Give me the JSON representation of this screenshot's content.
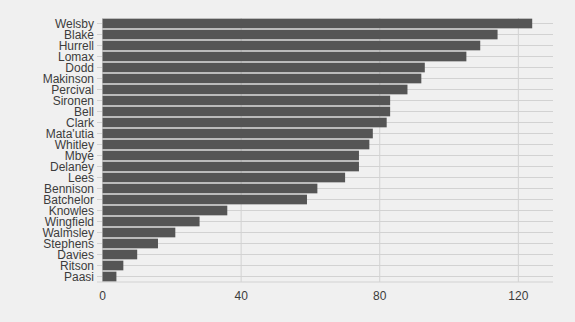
{
  "chart_data": {
    "type": "bar",
    "orientation": "horizontal",
    "categories": [
      "Welsby",
      "Blake",
      "Hurrell",
      "Lomax",
      "Dodd",
      "Makinson",
      "Percival",
      "Sironen",
      "Bell",
      "Clark",
      "Mata'utia",
      "Whitley",
      "Mbye",
      "Delaney",
      "Lees",
      "Bennison",
      "Batchelor",
      "Knowles",
      "Wingfield",
      "Walmsley",
      "Stephens",
      "Davies",
      "Ritson",
      "Paasi"
    ],
    "values": [
      124,
      114,
      109,
      105,
      93,
      92,
      88,
      83,
      83,
      82,
      78,
      77,
      74,
      74,
      70,
      62,
      59,
      36,
      28,
      21,
      16,
      10,
      6,
      4
    ],
    "color": "#555555",
    "xlim": [
      -1.6,
      130
    ],
    "xticks": [
      0,
      40,
      80,
      120
    ],
    "grid": true
  }
}
